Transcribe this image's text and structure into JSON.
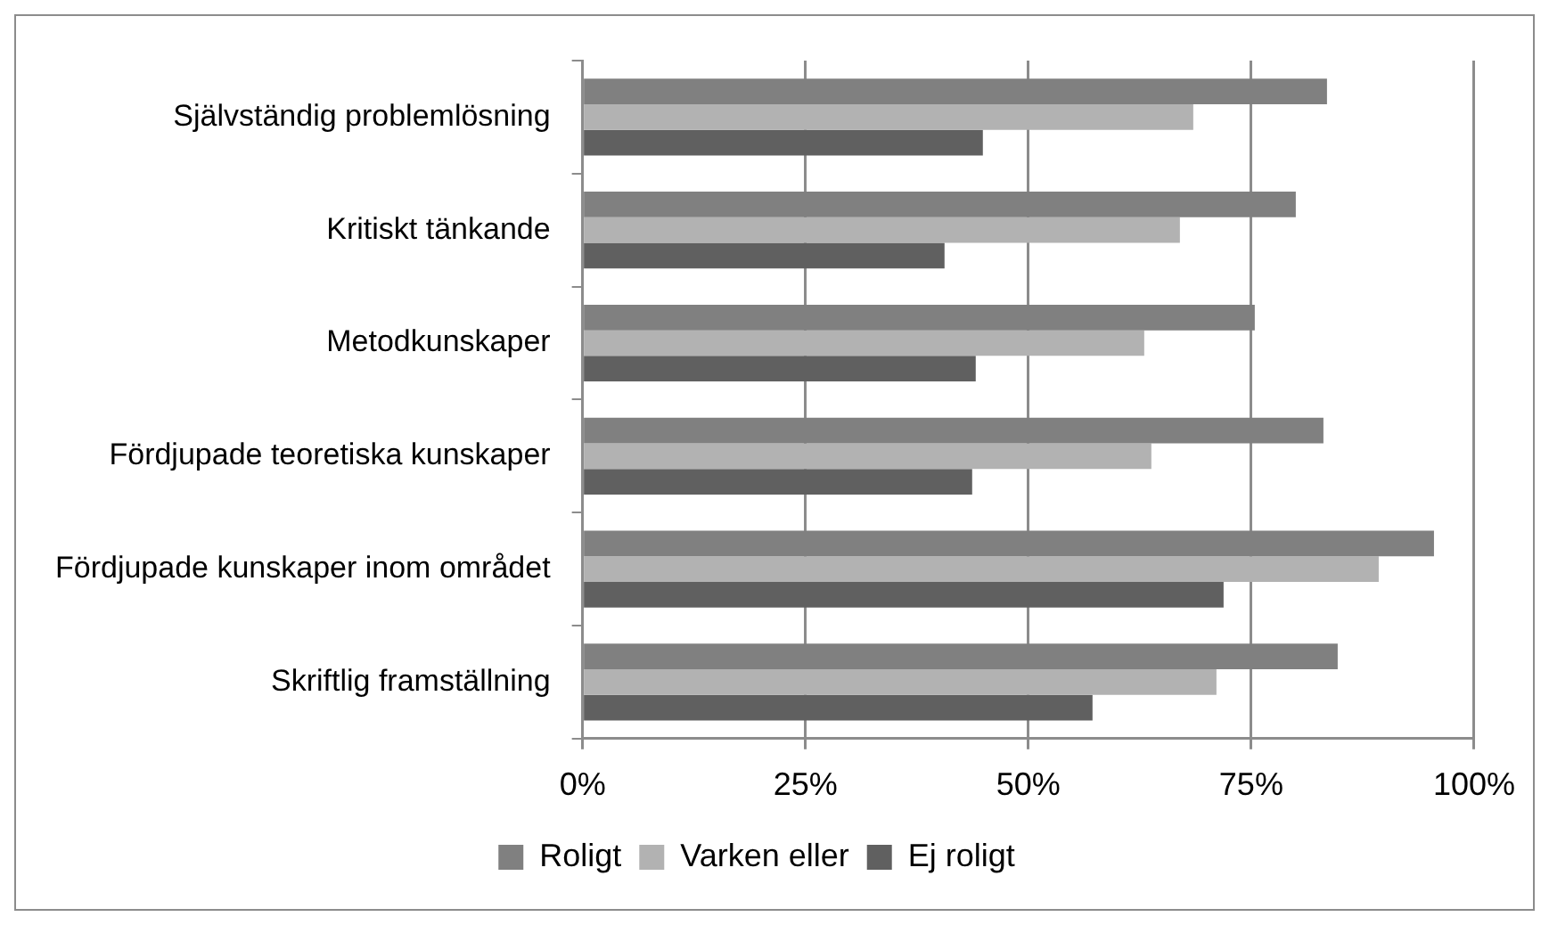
{
  "chart_data": {
    "type": "bar",
    "orientation": "horizontal",
    "categories": [
      "Självständig problemlösning",
      "Kritiskt tänkande",
      "Metodkunskaper",
      "Fördjupade teoretiska kunskaper",
      "Fördjupade kunskaper inom området",
      "Skriftlig framställning"
    ],
    "series": [
      {
        "name": "Roligt",
        "color": "#808080",
        "values": [
          83.5,
          80,
          75.4,
          83.1,
          95.5,
          84.7
        ]
      },
      {
        "name": "Varken eller",
        "color": "#b2b2b2",
        "values": [
          68.5,
          67,
          63,
          63.8,
          89.3,
          71.1
        ]
      },
      {
        "name": "Ej roligt",
        "color": "#606060",
        "values": [
          44.9,
          40.6,
          44.1,
          43.7,
          71.9,
          57.2
        ]
      }
    ],
    "xlim": [
      0,
      100
    ],
    "xticks": [
      {
        "value": 0,
        "label": "0%"
      },
      {
        "value": 25,
        "label": "25%"
      },
      {
        "value": 50,
        "label": "50%"
      },
      {
        "value": 75,
        "label": "75%"
      },
      {
        "value": 100,
        "label": "100%"
      }
    ],
    "grid": "x",
    "legend": "bottom"
  }
}
